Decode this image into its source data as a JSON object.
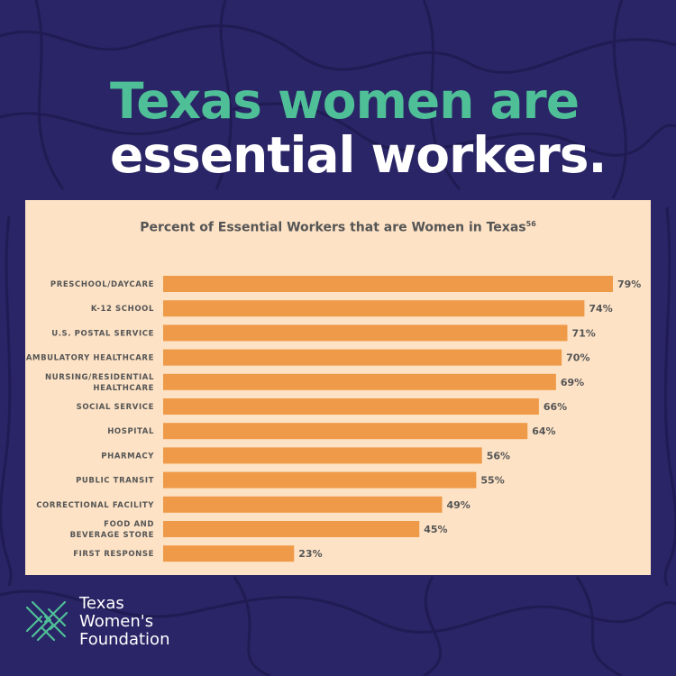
{
  "headline": {
    "line1": "Texas women are",
    "line2": "essential workers."
  },
  "colors": {
    "background": "#2a2566",
    "accent_green": "#4fbf97",
    "card": "#fde2c5",
    "bar": "#ef9a48",
    "label": "#555555"
  },
  "chart_data": {
    "type": "bar",
    "orientation": "horizontal",
    "title": "Percent of Essential Workers that are Women in Texas",
    "title_superscript": "56",
    "categories": [
      "PRESCHOOL/DAYCARE",
      "K-12 SCHOOL",
      "U.S. POSTAL SERVICE",
      "AMBULATORY HEALTHCARE",
      "NURSING/RESIDENTIAL HEALTHCARE",
      "SOCIAL SERVICE",
      "HOSPITAL",
      "PHARMACY",
      "PUBLIC TRANSIT",
      "CORRECTIONAL FACILITY",
      "FOOD AND BEVERAGE STORE",
      "FIRST RESPONSE"
    ],
    "category_lines": [
      [
        "PRESCHOOL/DAYCARE"
      ],
      [
        "K-12 SCHOOL"
      ],
      [
        "U.S. POSTAL SERVICE"
      ],
      [
        "AMBULATORY HEALTHCARE"
      ],
      [
        "NURSING/RESIDENTIAL",
        "HEALTHCARE"
      ],
      [
        "SOCIAL SERVICE"
      ],
      [
        "HOSPITAL"
      ],
      [
        "PHARMACY"
      ],
      [
        "PUBLIC TRANSIT"
      ],
      [
        "CORRECTIONAL FACILITY"
      ],
      [
        "FOOD AND",
        "BEVERAGE STORE"
      ],
      [
        "FIRST RESPONSE"
      ]
    ],
    "values": [
      79,
      74,
      71,
      70,
      69,
      66,
      64,
      56,
      55,
      49,
      45,
      23
    ],
    "value_labels": [
      "79%",
      "74%",
      "71%",
      "70%",
      "69%",
      "66%",
      "64%",
      "56%",
      "55%",
      "49%",
      "45%",
      "23%"
    ],
    "xlim": [
      0,
      79
    ],
    "grid": false,
    "legend": "none"
  },
  "logo": {
    "line1": "Texas",
    "line2": "Women's",
    "line3": "Foundation",
    "icon": "woven-lattice-icon"
  }
}
